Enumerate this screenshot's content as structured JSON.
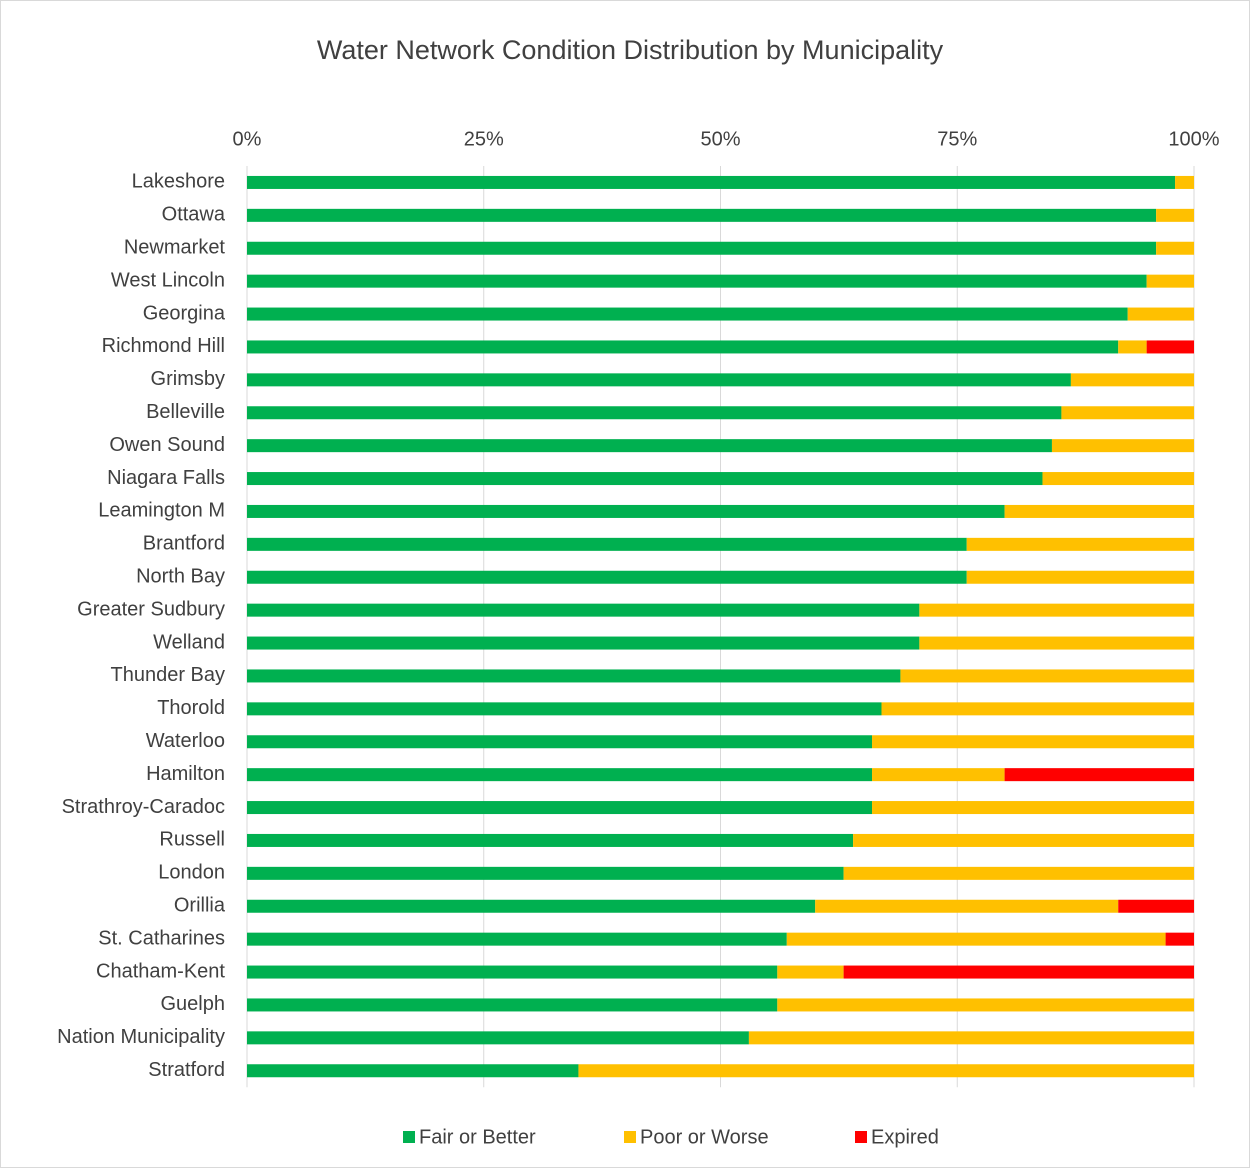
{
  "chart_data": {
    "type": "stacked_barh",
    "title": "Water Network Condition Distribution by Municipality",
    "categories": [
      "Lakeshore",
      "Ottawa",
      "Newmarket",
      "West Lincoln",
      "Georgina",
      "Richmond Hill",
      "Grimsby",
      "Belleville",
      "Owen Sound",
      "Niagara Falls",
      "Leamington M",
      "Brantford",
      "North Bay",
      "Greater Sudbury",
      "Welland",
      "Thunder Bay",
      "Thorold",
      "Waterloo",
      "Hamilton",
      "Strathroy-Caradoc",
      "Russell",
      "London",
      "Orillia",
      "St. Catharines",
      "Chatham-Kent",
      "Guelph",
      "Nation Municipality",
      "Stratford"
    ],
    "series": [
      {
        "name": "Fair or Better",
        "color": "#00b050",
        "values": [
          98,
          96,
          96,
          95,
          93,
          92,
          87,
          86,
          85,
          84,
          80,
          76,
          76,
          71,
          71,
          69,
          67,
          66,
          66,
          66,
          64,
          63,
          60,
          57,
          56,
          56,
          53,
          35
        ]
      },
      {
        "name": "Poor or Worse",
        "color": "#ffc000",
        "values": [
          2,
          4,
          4,
          5,
          7,
          3,
          13,
          14,
          15,
          16,
          20,
          24,
          24,
          29,
          29,
          31,
          33,
          34,
          14,
          34,
          36,
          37,
          32,
          40,
          7,
          44,
          47,
          65
        ]
      },
      {
        "name": "Expired",
        "color": "#ff0000",
        "values": [
          0,
          0,
          0,
          0,
          0,
          5,
          0,
          0,
          0,
          0,
          0,
          0,
          0,
          0,
          0,
          0,
          0,
          0,
          20,
          0,
          0,
          0,
          8,
          3,
          37,
          0,
          0,
          0
        ]
      }
    ],
    "xlim": [
      0,
      100
    ],
    "xticks": [
      {
        "value": 0,
        "label": "0%"
      },
      {
        "value": 25,
        "label": "25%"
      },
      {
        "value": 50,
        "label": "50%"
      },
      {
        "value": 75,
        "label": "75%"
      },
      {
        "value": 100,
        "label": "100%"
      }
    ],
    "grid": true,
    "legend": "bottom"
  }
}
